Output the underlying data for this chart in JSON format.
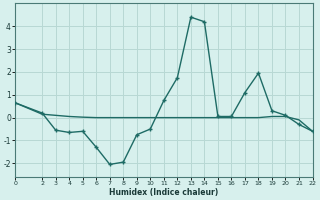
{
  "xlabel": "Humidex (Indice chaleur)",
  "background_color": "#d7f0ed",
  "grid_color": "#b8d8d4",
  "line_color": "#1e6b65",
  "line1_x": [
    0,
    2,
    3,
    4,
    5,
    6,
    7,
    8,
    9,
    10,
    11,
    12,
    13,
    14,
    15,
    16,
    17,
    18,
    19,
    20,
    21,
    22
  ],
  "line1_y": [
    0.65,
    0.2,
    -0.55,
    -0.65,
    -0.6,
    -1.3,
    -2.05,
    -1.95,
    -0.75,
    -0.5,
    0.75,
    1.75,
    4.4,
    4.2,
    0.05,
    0.05,
    1.1,
    1.95,
    0.3,
    0.1,
    -0.3,
    -0.6
  ],
  "line2_x": [
    0,
    2,
    3,
    4,
    5,
    6,
    7,
    8,
    9,
    10,
    11,
    12,
    13,
    14,
    15,
    16,
    17,
    18,
    19,
    20,
    21,
    22
  ],
  "line2_y": [
    0.65,
    0.15,
    0.1,
    0.05,
    0.02,
    0.0,
    0.0,
    0.0,
    0.0,
    0.0,
    0.0,
    0.0,
    0.0,
    0.0,
    0.0,
    0.0,
    0.0,
    0.0,
    0.05,
    0.05,
    -0.1,
    -0.6
  ],
  "xlim": [
    0,
    22
  ],
  "ylim": [
    -2.6,
    5.0
  ],
  "yticks": [
    -2,
    -1,
    0,
    1,
    2,
    3,
    4
  ],
  "xticks": [
    0,
    2,
    3,
    4,
    5,
    6,
    7,
    8,
    9,
    10,
    11,
    12,
    13,
    14,
    15,
    16,
    17,
    18,
    19,
    20,
    21,
    22
  ]
}
